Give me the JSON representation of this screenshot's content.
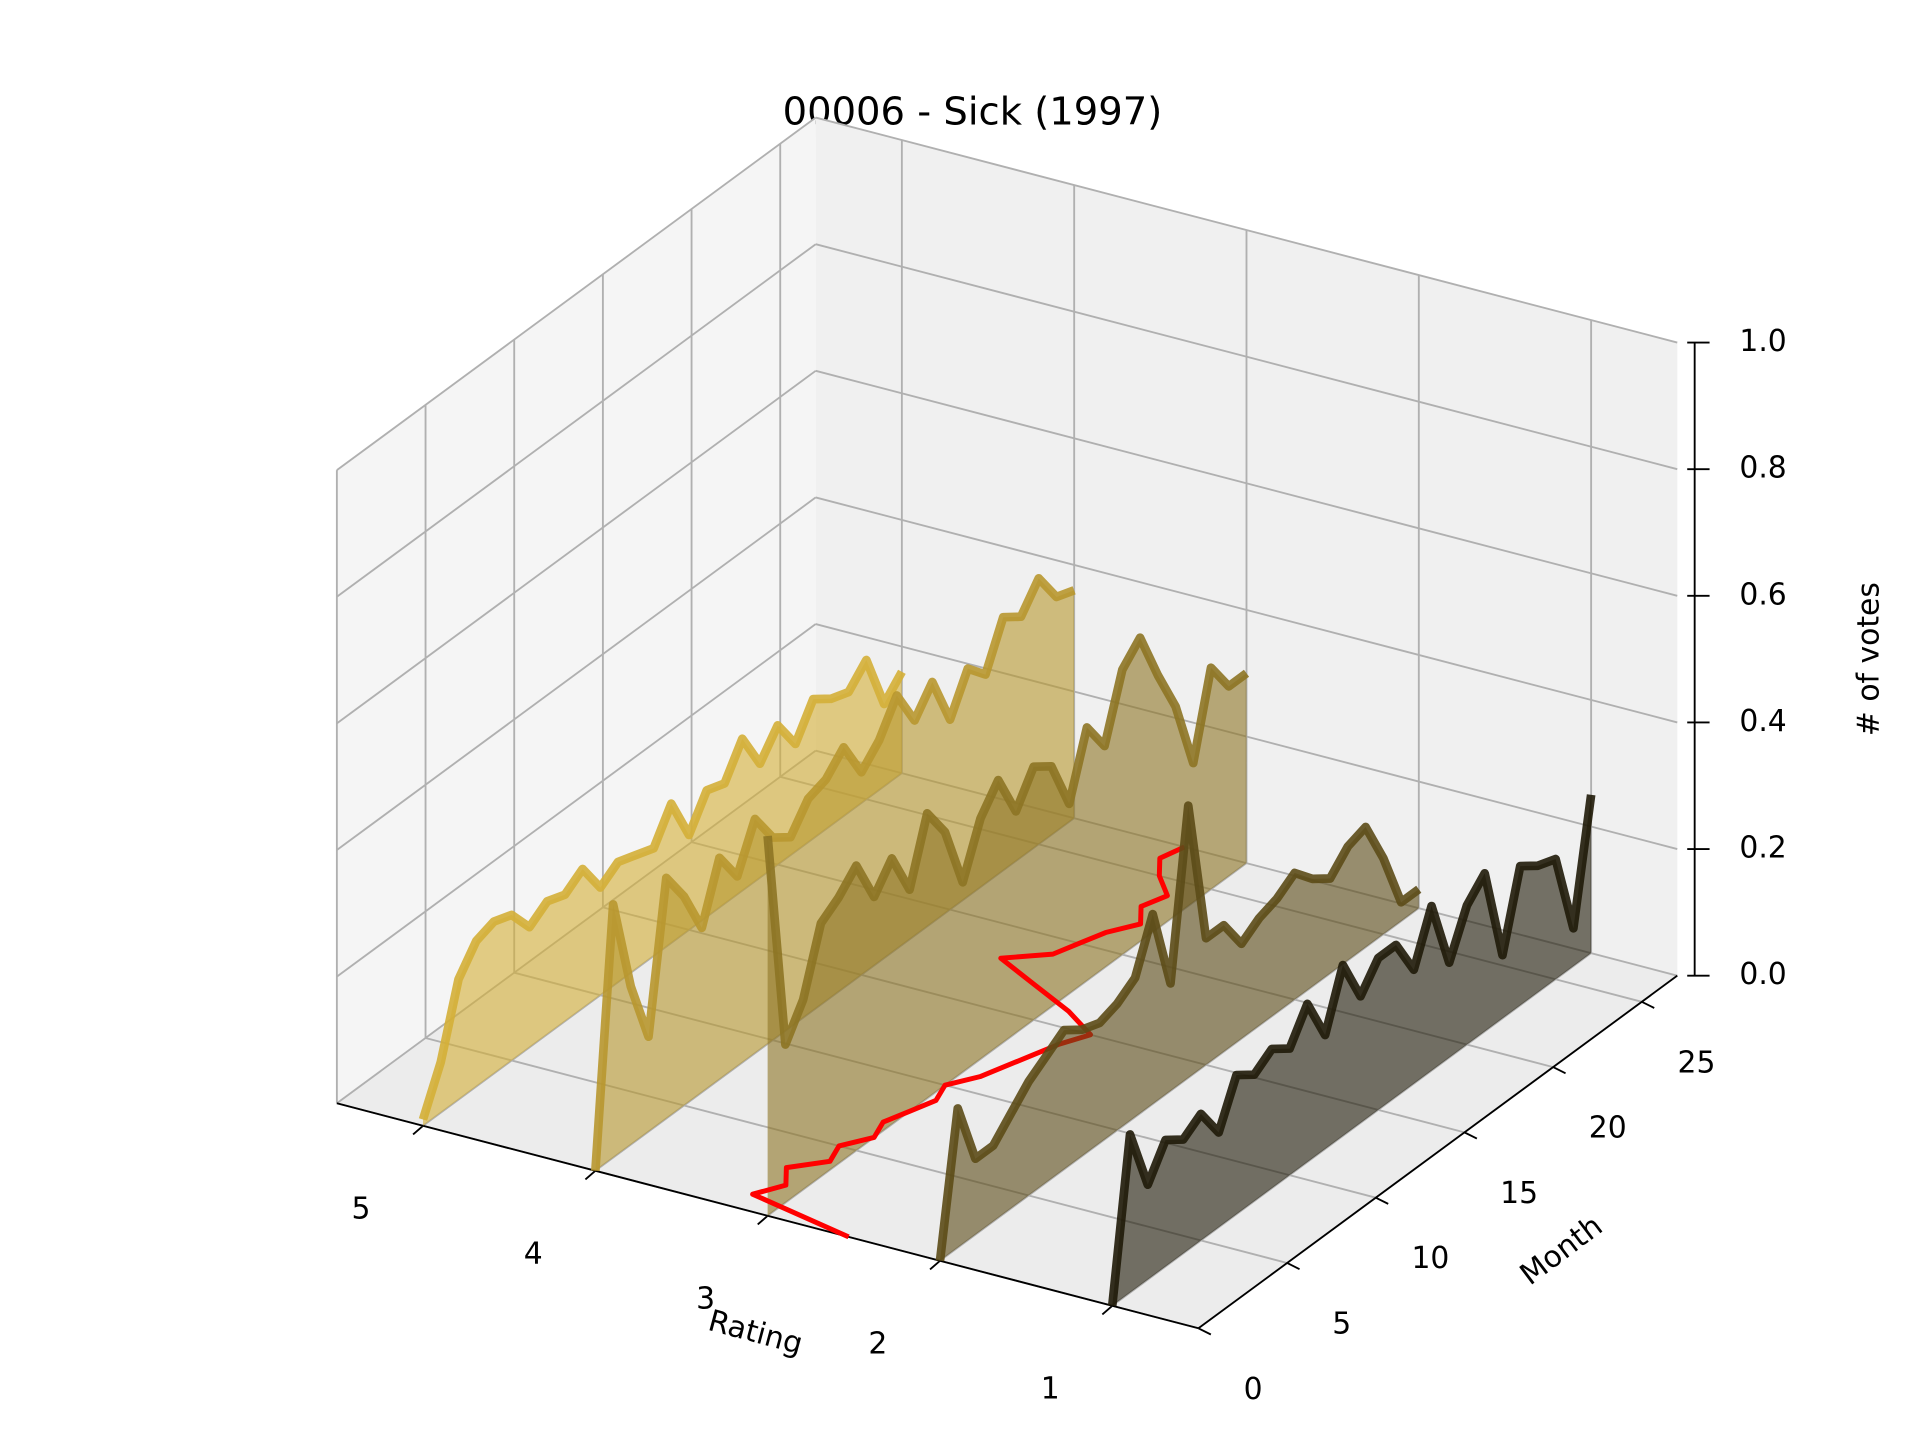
{
  "chart_data": {
    "type": "line3d",
    "title": "00006 - Sick (1997)",
    "xlabel": "Rating",
    "ylabel": "Month",
    "zlabel": "# of votes",
    "xlim": [
      0.5,
      5.5
    ],
    "ylim": [
      0,
      27
    ],
    "zlim": [
      0,
      1
    ],
    "xticks": [
      1,
      2,
      3,
      4,
      5
    ],
    "yticks": [
      0,
      5,
      10,
      15,
      20,
      25
    ],
    "zticks": [
      {
        "value": 0,
        "label": "0.0"
      },
      {
        "value": 0.2,
        "label": "0.2"
      },
      {
        "value": 0.4,
        "label": "0.4"
      },
      {
        "value": 0.6,
        "label": "0.6"
      },
      {
        "value": 0.8,
        "label": "0.8"
      },
      {
        "value": 1,
        "label": "1.0"
      }
    ],
    "grid": true,
    "months": [
      0,
      1,
      2,
      3,
      4,
      5,
      6,
      7,
      8,
      9,
      10,
      11,
      12,
      13,
      14,
      15,
      16,
      17,
      18,
      19,
      20,
      21,
      22,
      23,
      24,
      25,
      26,
      27
    ],
    "series": [
      {
        "x": 5,
        "color": "#d4af37",
        "values": [
          0.01,
          0.08,
          0.19,
          0.23,
          0.24,
          0.23,
          0.19,
          0.21,
          0.2,
          0.22,
          0.17,
          0.19,
          0.18,
          0.17,
          0.22,
          0.15,
          0.2,
          0.19,
          0.24,
          0.18,
          0.22,
          0.17,
          0.22,
          0.2,
          0.19,
          0.22,
          0.13,
          0.16
        ]
      },
      {
        "x": 4,
        "color": "#b8972f",
        "values": [
          0.0,
          0.4,
          0.25,
          0.15,
          0.38,
          0.33,
          0.26,
          0.35,
          0.3,
          0.37,
          0.32,
          0.3,
          0.34,
          0.35,
          0.38,
          0.32,
          0.35,
          0.4,
          0.34,
          0.38,
          0.3,
          0.36,
          0.33,
          0.4,
          0.38,
          0.42,
          0.37,
          0.36
        ]
      },
      {
        "x": 3,
        "color": "#8d7424",
        "values": [
          0.6,
          0.25,
          0.3,
          0.4,
          0.42,
          0.45,
          0.38,
          0.42,
          0.35,
          0.45,
          0.4,
          0.3,
          0.38,
          0.42,
          0.35,
          0.4,
          0.38,
          0.3,
          0.4,
          0.35,
          0.45,
          0.48,
          0.4,
          0.33,
          0.22,
          0.35,
          0.3,
          0.3
        ]
      },
      {
        "x": 2,
        "color": "#5c4b17",
        "values": [
          0.0,
          0.22,
          0.12,
          0.12,
          0.15,
          0.18,
          0.2,
          0.22,
          0.2,
          0.19,
          0.2,
          0.22,
          0.3,
          0.17,
          0.43,
          0.2,
          0.2,
          0.15,
          0.17,
          0.18,
          0.2,
          0.17,
          0.15,
          0.18,
          0.19,
          0.12,
          0.03,
          0.03
        ]
      },
      {
        "x": 1,
        "color": "#1f1a08",
        "values": [
          0.0,
          0.25,
          0.15,
          0.2,
          0.18,
          0.2,
          0.15,
          0.22,
          0.2,
          0.22,
          0.2,
          0.25,
          0.18,
          0.27,
          0.2,
          0.24,
          0.24,
          0.18,
          0.26,
          0.15,
          0.22,
          0.25,
          0.1,
          0.22,
          0.2,
          0.19,
          0.06,
          0.25
        ]
      }
    ],
    "mean_line": {
      "color": "#ff0000",
      "values": [
        2.53,
        3.19,
        3.1,
        3.2,
        3.05,
        3.1,
        3.0,
        3.05,
        3.0,
        2.95,
        3.0,
        2.9,
        2.85,
        2.8,
        2.75,
        2.67,
        2.9,
        3.2,
        3.5,
        3.3,
        3.25,
        3.2,
        3.1,
        3.2,
        3.15,
        3.3,
        3.4,
        3.36
      ]
    }
  }
}
